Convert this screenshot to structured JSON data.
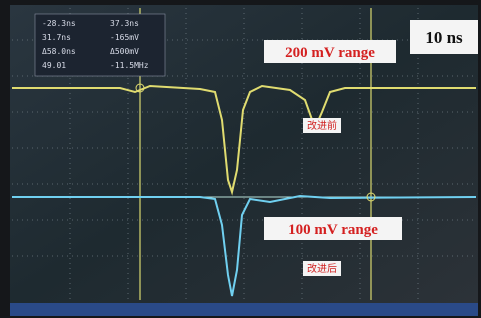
{
  "readouts": {
    "rows": [
      [
        "-28.3ns",
        "37.3ns"
      ],
      [
        "31.7ns",
        "-165mV"
      ],
      [
        "Δ58.0ns",
        "Δ500mV"
      ],
      [
        "49.01",
        "-11.5MHz"
      ]
    ]
  },
  "labels": {
    "timebase": "10 ns",
    "range_top": "200 mV range",
    "range_bottom": "100 mV range",
    "before": "改进前",
    "after": "改进后"
  }
}
